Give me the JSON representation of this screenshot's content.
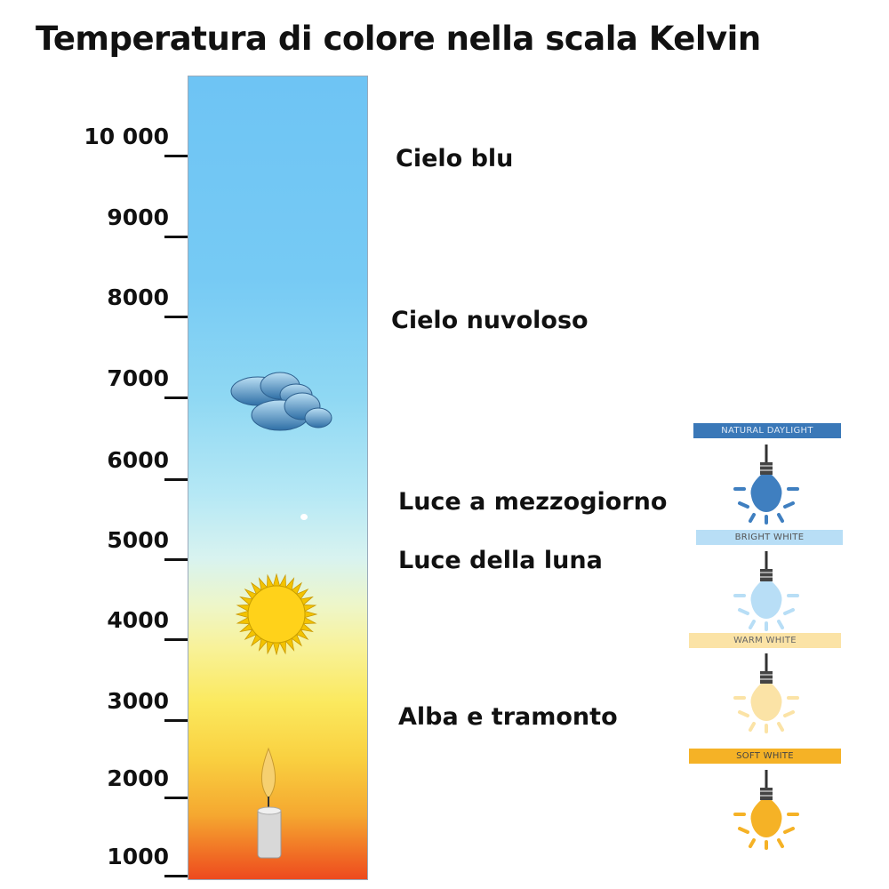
{
  "title": "Temperatura di colore nella scala Kelvin",
  "scale": {
    "ticks": [
      "10 000",
      "9000",
      "8000",
      "7000",
      "6000",
      "5000",
      "4000",
      "3000",
      "2000",
      "1000"
    ]
  },
  "descriptions": [
    "Cielo blu",
    "Cielo nuvoloso",
    "Luce a mezzogiorno",
    "Luce della luna",
    "Alba e tramonto"
  ],
  "icons": [
    "cloud-icon",
    "sun-icon",
    "candle-icon"
  ],
  "bulbs": [
    {
      "label": "NATURAL DAYLIGHT",
      "color": "#3a78b8",
      "bulb": "#3f7fc0",
      "text": "#dfe9f5"
    },
    {
      "label": "BRIGHT WHITE",
      "color": "#b8def6",
      "bulb": "#b8def6",
      "text": "#555"
    },
    {
      "label": "WARM WHITE",
      "color": "#fbe3a6",
      "bulb": "#fbe3a6",
      "text": "#666"
    },
    {
      "label": "SOFT WHITE",
      "color": "#f5b226",
      "bulb": "#f5b226",
      "text": "#444"
    }
  ]
}
